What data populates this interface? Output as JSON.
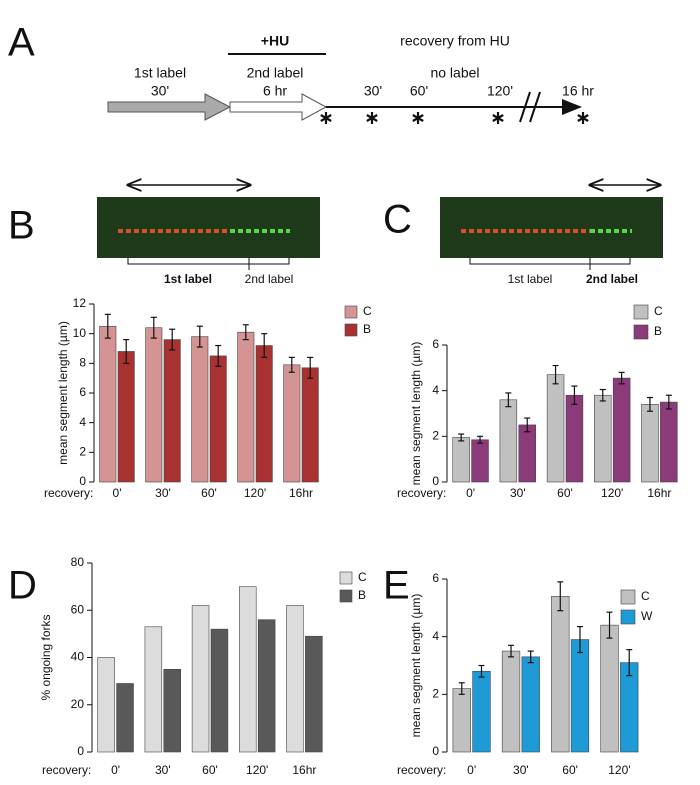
{
  "panels": [
    "A",
    "B",
    "C",
    "D",
    "E"
  ],
  "timeline": {
    "treatment": "+HU",
    "recovery_title": "recovery from HU",
    "first_label": "1st label",
    "first_time": "30'",
    "second_label": "2nd label",
    "second_time": "6 hr",
    "no_label": "no label",
    "times": [
      "30'",
      "60'",
      "120'",
      "16 hr"
    ]
  },
  "micrographs": [
    {
      "first": "1st label",
      "second": "2nd label"
    },
    {
      "first": "1st label",
      "second": "2nd label"
    }
  ],
  "chart_data": [
    {
      "type": "bar",
      "ylabel": "mean segment length (µm)",
      "xlabel": "recovery:",
      "categories": [
        "0'",
        "30'",
        "60'",
        "120'",
        "16hr"
      ],
      "ylim": [
        0,
        12
      ],
      "yticks": [
        0,
        2,
        4,
        6,
        8,
        10,
        12
      ],
      "series": [
        {
          "name": "C",
          "color": "#d49494",
          "values": [
            10.5,
            10.4,
            9.8,
            10.1,
            7.9
          ],
          "errors": [
            0.8,
            0.7,
            0.7,
            0.5,
            0.5
          ]
        },
        {
          "name": "B",
          "color": "#a83232",
          "values": [
            8.8,
            9.6,
            8.5,
            9.2,
            7.7
          ],
          "errors": [
            0.8,
            0.7,
            0.7,
            0.8,
            0.7
          ]
        }
      ]
    },
    {
      "type": "bar",
      "ylabel": "mean segment length (µm)",
      "xlabel": "recovery:",
      "categories": [
        "0'",
        "30'",
        "60'",
        "120'",
        "16hr"
      ],
      "ylim": [
        0,
        6
      ],
      "yticks": [
        0,
        2,
        4,
        6
      ],
      "series": [
        {
          "name": "C",
          "color": "#c0c0c0",
          "values": [
            1.95,
            3.6,
            4.7,
            3.8,
            3.4
          ],
          "errors": [
            0.15,
            0.3,
            0.4,
            0.25,
            0.3
          ]
        },
        {
          "name": "B",
          "color": "#8b3a7a",
          "values": [
            1.85,
            2.5,
            3.8,
            4.55,
            3.5
          ],
          "errors": [
            0.15,
            0.3,
            0.4,
            0.25,
            0.3
          ]
        }
      ]
    },
    {
      "type": "bar",
      "ylabel": "% ongoing forks",
      "xlabel": "recovery:",
      "categories": [
        "0'",
        "30'",
        "60'",
        "120'",
        "16hr"
      ],
      "ylim": [
        0,
        80
      ],
      "yticks": [
        0,
        20,
        40,
        60,
        80
      ],
      "series": [
        {
          "name": "C",
          "color": "#dcdcdc",
          "values": [
            40,
            53,
            62,
            70,
            62
          ]
        },
        {
          "name": "B",
          "color": "#595959",
          "values": [
            29,
            35,
            52,
            56,
            49
          ]
        }
      ]
    },
    {
      "type": "bar",
      "ylabel": "mean segment length (µm)",
      "xlabel": "recovery:",
      "categories": [
        "0'",
        "30'",
        "60'",
        "120'"
      ],
      "ylim": [
        0,
        6
      ],
      "yticks": [
        0,
        2,
        4,
        6
      ],
      "series": [
        {
          "name": "C",
          "color": "#c0c0c0",
          "values": [
            2.2,
            3.5,
            5.4,
            4.4
          ],
          "errors": [
            0.2,
            0.2,
            0.5,
            0.45
          ]
        },
        {
          "name": "W",
          "color": "#1e9ad6",
          "values": [
            2.8,
            3.3,
            3.9,
            3.1
          ],
          "errors": [
            0.2,
            0.2,
            0.45,
            0.45
          ]
        }
      ]
    }
  ]
}
